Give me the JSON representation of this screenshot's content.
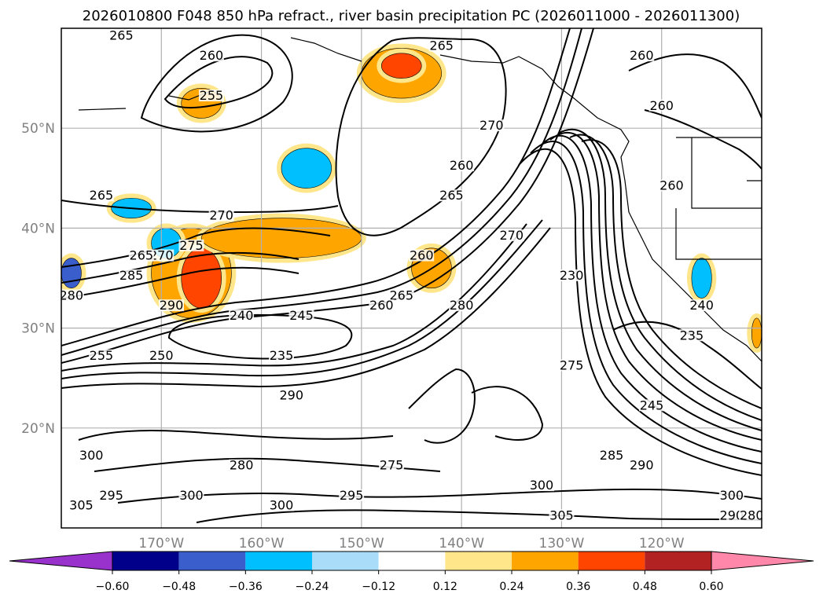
{
  "title": "2026010800 F048 850 hPa refract., river basin precipitation PC (2026011000 - 2026011300)",
  "chart_data": {
    "type": "contour_map",
    "title": "2026010800 F048 850 hPa refract., river basin precipitation PC (2026011000 - 2026011300)",
    "lon_range": [
      -180,
      -110
    ],
    "lat_range": [
      10,
      60
    ],
    "x_ticks": [
      {
        "lon": -170,
        "label": "170°W"
      },
      {
        "lon": -160,
        "label": "160°W"
      },
      {
        "lon": -150,
        "label": "150°W"
      },
      {
        "lon": -140,
        "label": "140°W"
      },
      {
        "lon": -130,
        "label": "130°W"
      },
      {
        "lon": -120,
        "label": "120°W"
      }
    ],
    "y_ticks": [
      {
        "lat": 50,
        "label": "50°N"
      },
      {
        "lat": 40,
        "label": "40°N"
      },
      {
        "lat": 30,
        "label": "30°N"
      },
      {
        "lat": 20,
        "label": "20°N"
      }
    ],
    "grid": true,
    "colorbar": {
      "orientation": "horizontal",
      "extend": "both",
      "ticks": [
        "−0.60",
        "−0.48",
        "−0.36",
        "−0.24",
        "−0.12",
        "0.12",
        "0.24",
        "0.36",
        "0.48",
        "0.60"
      ],
      "tick_values": [
        -0.6,
        -0.48,
        -0.36,
        -0.24,
        -0.12,
        0.12,
        0.24,
        0.36,
        0.48,
        0.6
      ],
      "colors": [
        "#9932cc",
        "#00008b",
        "#3a5fcd",
        "#00bfff",
        "#a8dcf8",
        "#ffffff",
        "#ffe68a",
        "#ffa500",
        "#ff4500",
        "#b22222",
        "#ff88aa"
      ]
    },
    "contour_labels": [
      {
        "text": "265",
        "lon": -174,
        "lat": 59
      },
      {
        "text": "260",
        "lon": -165,
        "lat": 57
      },
      {
        "text": "255",
        "lon": -165,
        "lat": 53
      },
      {
        "text": "265",
        "lon": -142,
        "lat": 58
      },
      {
        "text": "260",
        "lon": -122,
        "lat": 57
      },
      {
        "text": "270",
        "lon": -137,
        "lat": 50
      },
      {
        "text": "260",
        "lon": -140,
        "lat": 46
      },
      {
        "text": "265",
        "lon": -141,
        "lat": 43
      },
      {
        "text": "260",
        "lon": -120,
        "lat": 52
      },
      {
        "text": "260",
        "lon": -119,
        "lat": 44
      },
      {
        "text": "265",
        "lon": -176,
        "lat": 43
      },
      {
        "text": "270",
        "lon": -164,
        "lat": 41
      },
      {
        "text": "275",
        "lon": -167,
        "lat": 38
      },
      {
        "text": "270",
        "lon": -170,
        "lat": 37
      },
      {
        "text": "265",
        "lon": -172,
        "lat": 37
      },
      {
        "text": "285",
        "lon": -173,
        "lat": 35
      },
      {
        "text": "290",
        "lon": -169,
        "lat": 32
      },
      {
        "text": "280",
        "lon": -179,
        "lat": 33
      },
      {
        "text": "270",
        "lon": -135,
        "lat": 39
      },
      {
        "text": "260",
        "lon": -144,
        "lat": 37
      },
      {
        "text": "265",
        "lon": -146,
        "lat": 33
      },
      {
        "text": "260",
        "lon": -148,
        "lat": 32
      },
      {
        "text": "280",
        "lon": -140,
        "lat": 32
      },
      {
        "text": "240",
        "lon": -162,
        "lat": 31
      },
      {
        "text": "245",
        "lon": -156,
        "lat": 31
      },
      {
        "text": "255",
        "lon": -176,
        "lat": 27
      },
      {
        "text": "250",
        "lon": -170,
        "lat": 27
      },
      {
        "text": "235",
        "lon": -158,
        "lat": 27
      },
      {
        "text": "290",
        "lon": -157,
        "lat": 23
      },
      {
        "text": "230",
        "lon": -129,
        "lat": 35
      },
      {
        "text": "240",
        "lon": -116,
        "lat": 32
      },
      {
        "text": "235",
        "lon": -117,
        "lat": 29
      },
      {
        "text": "245",
        "lon": -121,
        "lat": 22
      },
      {
        "text": "275",
        "lon": -129,
        "lat": 26
      },
      {
        "text": "300",
        "lon": -177,
        "lat": 17
      },
      {
        "text": "280",
        "lon": -162,
        "lat": 16
      },
      {
        "text": "275",
        "lon": -147,
        "lat": 16
      },
      {
        "text": "285",
        "lon": -125,
        "lat": 17
      },
      {
        "text": "290",
        "lon": -122,
        "lat": 16
      },
      {
        "text": "300",
        "lon": -158,
        "lat": 12
      },
      {
        "text": "295",
        "lon": -151,
        "lat": 13
      },
      {
        "text": "300",
        "lon": -132,
        "lat": 14
      },
      {
        "text": "305",
        "lon": -130,
        "lat": 11
      },
      {
        "text": "300",
        "lon": -167,
        "lat": 13
      },
      {
        "text": "295",
        "lon": -175,
        "lat": 13
      },
      {
        "text": "305",
        "lon": -178,
        "lat": 12
      },
      {
        "text": "300",
        "lon": -113,
        "lat": 13
      },
      {
        "text": "290",
        "lon": -113,
        "lat": 11
      },
      {
        "text": "280",
        "lon": -111,
        "lat": 11
      }
    ],
    "filled_regions": [
      {
        "color": "#ffa500",
        "lat_range": [
          53,
          58
        ],
        "lon_range": [
          -150,
          -142
        ]
      },
      {
        "color": "#ff4500",
        "lat_range": [
          55,
          57.5
        ],
        "lon_range": [
          -148,
          -144
        ]
      },
      {
        "color": "#ffa500",
        "lat_range": [
          51,
          54
        ],
        "lon_range": [
          -168,
          -164
        ]
      },
      {
        "color": "#ffa500",
        "lat_range": [
          31,
          40
        ],
        "lon_range": [
          -171,
          -163
        ]
      },
      {
        "color": "#ff4500",
        "lat_range": [
          32,
          38
        ],
        "lon_range": [
          -168,
          -164
        ]
      },
      {
        "color": "#ffa500",
        "lat_range": [
          37,
          41
        ],
        "lon_range": [
          -166,
          -150
        ]
      },
      {
        "color": "#ffa500",
        "lat_range": [
          34,
          38
        ],
        "lon_range": [
          -145,
          -141
        ]
      },
      {
        "color": "#00bfff",
        "lat_range": [
          44,
          48
        ],
        "lon_range": [
          -158,
          -153
        ]
      },
      {
        "color": "#3a5fcd",
        "lat_range": [
          34,
          37
        ],
        "lon_range": [
          -180,
          -178
        ]
      },
      {
        "color": "#00bfff",
        "lat_range": [
          37,
          40
        ],
        "lon_range": [
          -171,
          -168
        ]
      },
      {
        "color": "#00bfff",
        "lat_range": [
          41,
          43
        ],
        "lon_range": [
          -175,
          -171
        ]
      },
      {
        "color": "#00bfff",
        "lat_range": [
          33,
          37
        ],
        "lon_range": [
          -117,
          -115
        ]
      },
      {
        "color": "#ffa500",
        "lat_range": [
          28,
          31
        ],
        "lon_range": [
          -111,
          -110
        ]
      }
    ]
  }
}
